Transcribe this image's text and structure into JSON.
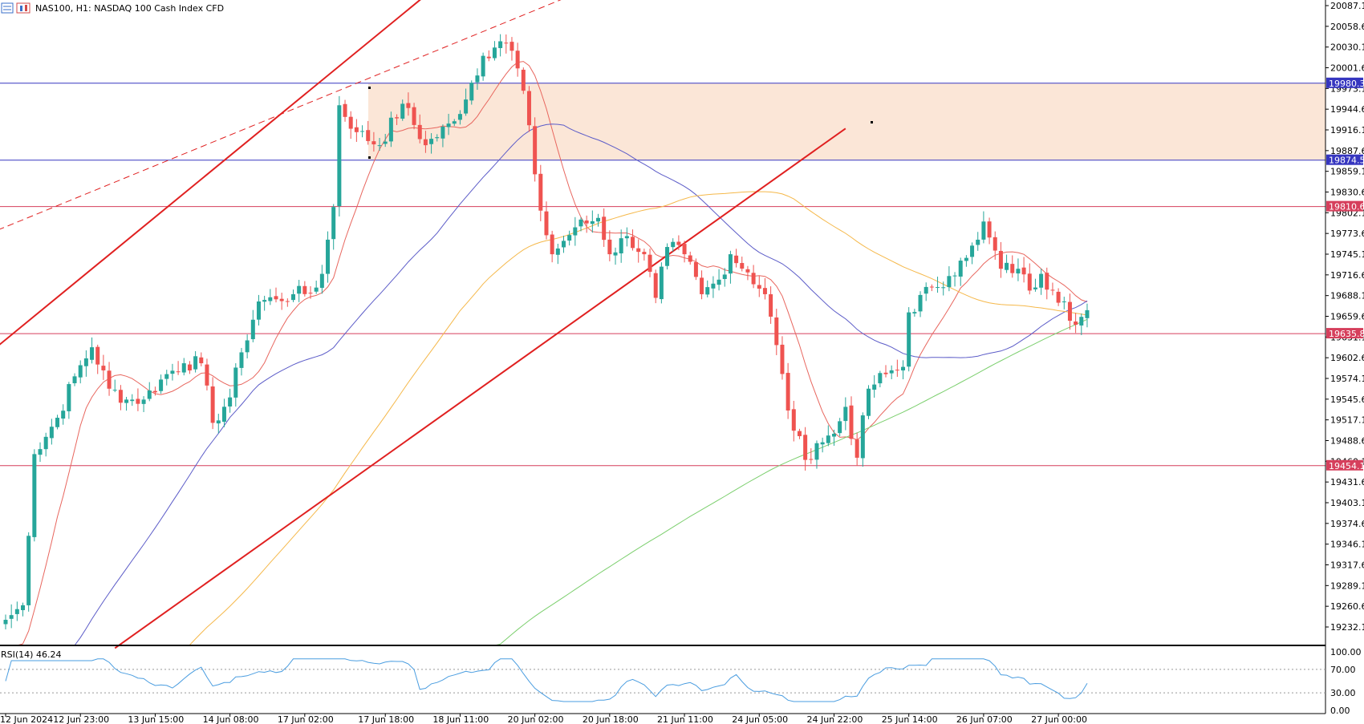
{
  "header": {
    "symbol_title": "NAS100, H1:  NASDAQ 100 Cash Index CFD",
    "rsi_label": "RSI(14) 46.24"
  },
  "colors": {
    "bull": "#26a69a",
    "bear": "#ef5350",
    "ma_fast": "#e8665e",
    "ma_mid": "#5c5cc8",
    "ma_slow": "#f5b84a",
    "ma_200": "#7ccf6e",
    "channel": "#e02020",
    "zone_fill": "#fbe6d7",
    "blue_level": "#3636c0",
    "red_level": "#d63f5c",
    "rsi": "#4a9de0",
    "grid_line": "#000000"
  },
  "chart_data": [
    {
      "type": "candlestick",
      "title": "NAS100, H1:  NASDAQ 100 Cash Index CFD",
      "price_axis": {
        "ylim": [
          19203.0,
          20095.0
        ],
        "tick_labels": [
          "20087.1",
          "20058.6",
          "20030.1",
          "20001.6",
          "19973.1",
          "19944.6",
          "19916.1",
          "19887.6",
          "19859.1",
          "19830.6",
          "19802.1",
          "19773.6",
          "19745.1",
          "19716.6",
          "19688.1",
          "19659.6",
          "19631.1",
          "19602.6",
          "19574.1",
          "19545.6",
          "19517.1",
          "19488.6",
          "19460.1",
          "19431.6",
          "19403.1",
          "19374.6",
          "19346.1",
          "19317.6",
          "19289.1",
          "19260.6",
          "19232.1"
        ]
      },
      "time_axis": {
        "tick_labels": [
          "12 Jun 2024",
          "12 Jun 23:00",
          "13 Jun 15:00",
          "14 Jun 08:00",
          "17 Jun 02:00",
          "17 Jun 18:00",
          "18 Jun 11:00",
          "20 Jun 02:00",
          "20 Jun 18:00",
          "21 Jun 11:00",
          "24 Jun 05:00",
          "24 Jun 22:00",
          "25 Jun 14:00",
          "26 Jun 07:00",
          "27 Jun 00:00"
        ]
      },
      "price_levels": [
        {
          "label": "19980.3",
          "value": 19980.3,
          "color": "blue"
        },
        {
          "label": "19874.5",
          "value": 19874.5,
          "color": "blue"
        },
        {
          "label": "19810.6",
          "value": 19810.6,
          "color": "red"
        },
        {
          "label": "19635.8",
          "value": 19635.8,
          "color": "red"
        },
        {
          "label": "19454.1",
          "value": 19454.1,
          "color": "red"
        }
      ],
      "supply_zone": {
        "price_top": 19980.3,
        "price_bottom": 19874.5
      },
      "close_anchors": [
        [
          0,
          19242
        ],
        [
          3,
          19262
        ],
        [
          5,
          19470
        ],
        [
          9,
          19520
        ],
        [
          12,
          19577
        ],
        [
          15,
          19617
        ],
        [
          18,
          19560
        ],
        [
          21,
          19545
        ],
        [
          24,
          19545
        ],
        [
          28,
          19580
        ],
        [
          31,
          19595
        ],
        [
          34,
          19595
        ],
        [
          36,
          19513
        ],
        [
          39,
          19548
        ],
        [
          41,
          19610
        ],
        [
          44,
          19680
        ],
        [
          47,
          19683
        ],
        [
          50,
          19690
        ],
        [
          53,
          19692
        ],
        [
          55,
          19718
        ],
        [
          57,
          19810
        ],
        [
          58,
          19950
        ],
        [
          61,
          19913
        ],
        [
          65,
          19895
        ],
        [
          69,
          19952
        ],
        [
          73,
          19895
        ],
        [
          78,
          19928
        ],
        [
          83,
          20018
        ],
        [
          86,
          20038
        ],
        [
          88,
          20025
        ],
        [
          90,
          19970
        ],
        [
          92,
          19855
        ],
        [
          93,
          19805
        ],
        [
          95,
          19745
        ],
        [
          99,
          19782
        ],
        [
          103,
          19795
        ],
        [
          105,
          19745
        ],
        [
          108,
          19770
        ],
        [
          111,
          19745
        ],
        [
          113,
          19685
        ],
        [
          115,
          19755
        ],
        [
          118,
          19745
        ],
        [
          121,
          19690
        ],
        [
          124,
          19710
        ],
        [
          126,
          19745
        ],
        [
          129,
          19720
        ],
        [
          132,
          19690
        ],
        [
          134,
          19620
        ],
        [
          136,
          19530
        ],
        [
          139,
          19462
        ],
        [
          141,
          19485
        ],
        [
          144,
          19498
        ],
        [
          146,
          19535
        ],
        [
          148,
          19465
        ],
        [
          150,
          19560
        ],
        [
          153,
          19580
        ],
        [
          156,
          19590
        ],
        [
          157,
          19665
        ],
        [
          161,
          19700
        ],
        [
          164,
          19715
        ],
        [
          167,
          19740
        ],
        [
          169,
          19765
        ],
        [
          170,
          19790
        ],
        [
          171,
          19768
        ],
        [
          173,
          19725
        ],
        [
          176,
          19725
        ],
        [
          178,
          19695
        ],
        [
          180,
          19718
        ],
        [
          182,
          19695
        ],
        [
          184,
          19680
        ],
        [
          186,
          19648
        ],
        [
          188,
          19668
        ]
      ],
      "overlays": [
        {
          "name": "ma_fast",
          "color": "red",
          "period": 10
        },
        {
          "name": "ma_mid",
          "color": "blue",
          "period": 40
        },
        {
          "name": "ma_slow",
          "color": "orange",
          "period": 80
        },
        {
          "name": "ma_200",
          "color": "green",
          "period": 200
        }
      ],
      "trendlines": [
        {
          "name": "channel-upper",
          "style": "solid",
          "from": [
            -3,
            19608
          ],
          "to": [
            99,
            20270
          ]
        },
        {
          "name": "channel-lower",
          "style": "solid",
          "from": [
            19,
            19203
          ],
          "to": [
            146,
            19918
          ]
        },
        {
          "name": "upper-extension",
          "style": "dashed",
          "from": [
            -3,
            19773
          ],
          "to": [
            98,
            20100
          ]
        }
      ]
    },
    {
      "type": "line",
      "title": "RSI(14) 46.24",
      "ylim": [
        0,
        100
      ],
      "tick_labels": [
        "100.00",
        "70.00",
        "30.00",
        "0.00"
      ],
      "levels": [
        70,
        30
      ],
      "last_value": 46.24
    }
  ]
}
